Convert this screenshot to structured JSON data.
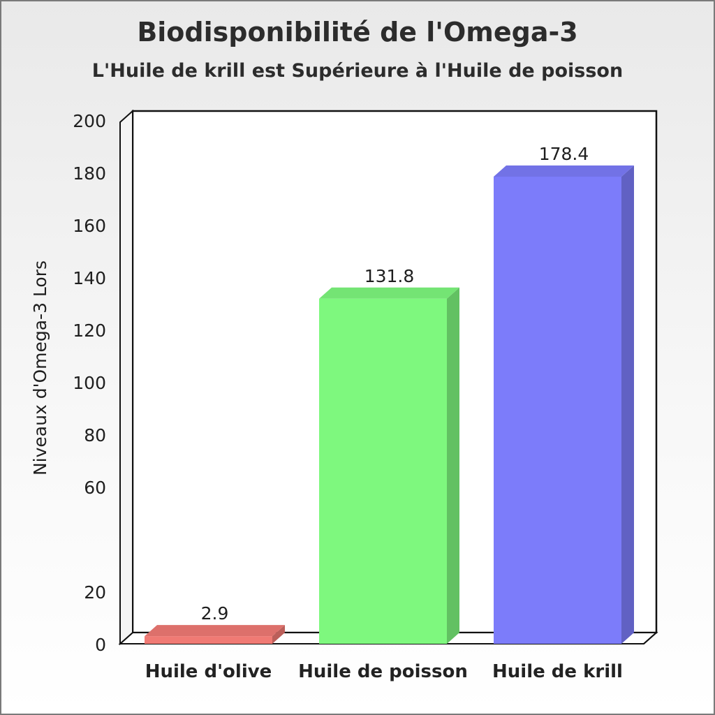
{
  "chart_data": {
    "type": "bar",
    "title": "Biodisponibilité de l'Omega-3",
    "subtitle": "L'Huile de krill est Supérieure à l'Huile de poisson",
    "ylabel": "Niveaux d'Omega-3 Lors",
    "xlabel": "",
    "ylim": [
      0,
      200
    ],
    "yticks": [
      0,
      20,
      60,
      80,
      100,
      120,
      140,
      160,
      180,
      200
    ],
    "categories": [
      "Huile d'olive",
      "Huile de poisson",
      "Huile de krill"
    ],
    "values": [
      2.9,
      131.8,
      178.4
    ],
    "value_labels": [
      "2.9",
      "131.8",
      "178.4"
    ],
    "colors": [
      "#f07a74",
      "#7ef87e",
      "#7c7cfa"
    ],
    "grid": false,
    "legend": "none"
  }
}
